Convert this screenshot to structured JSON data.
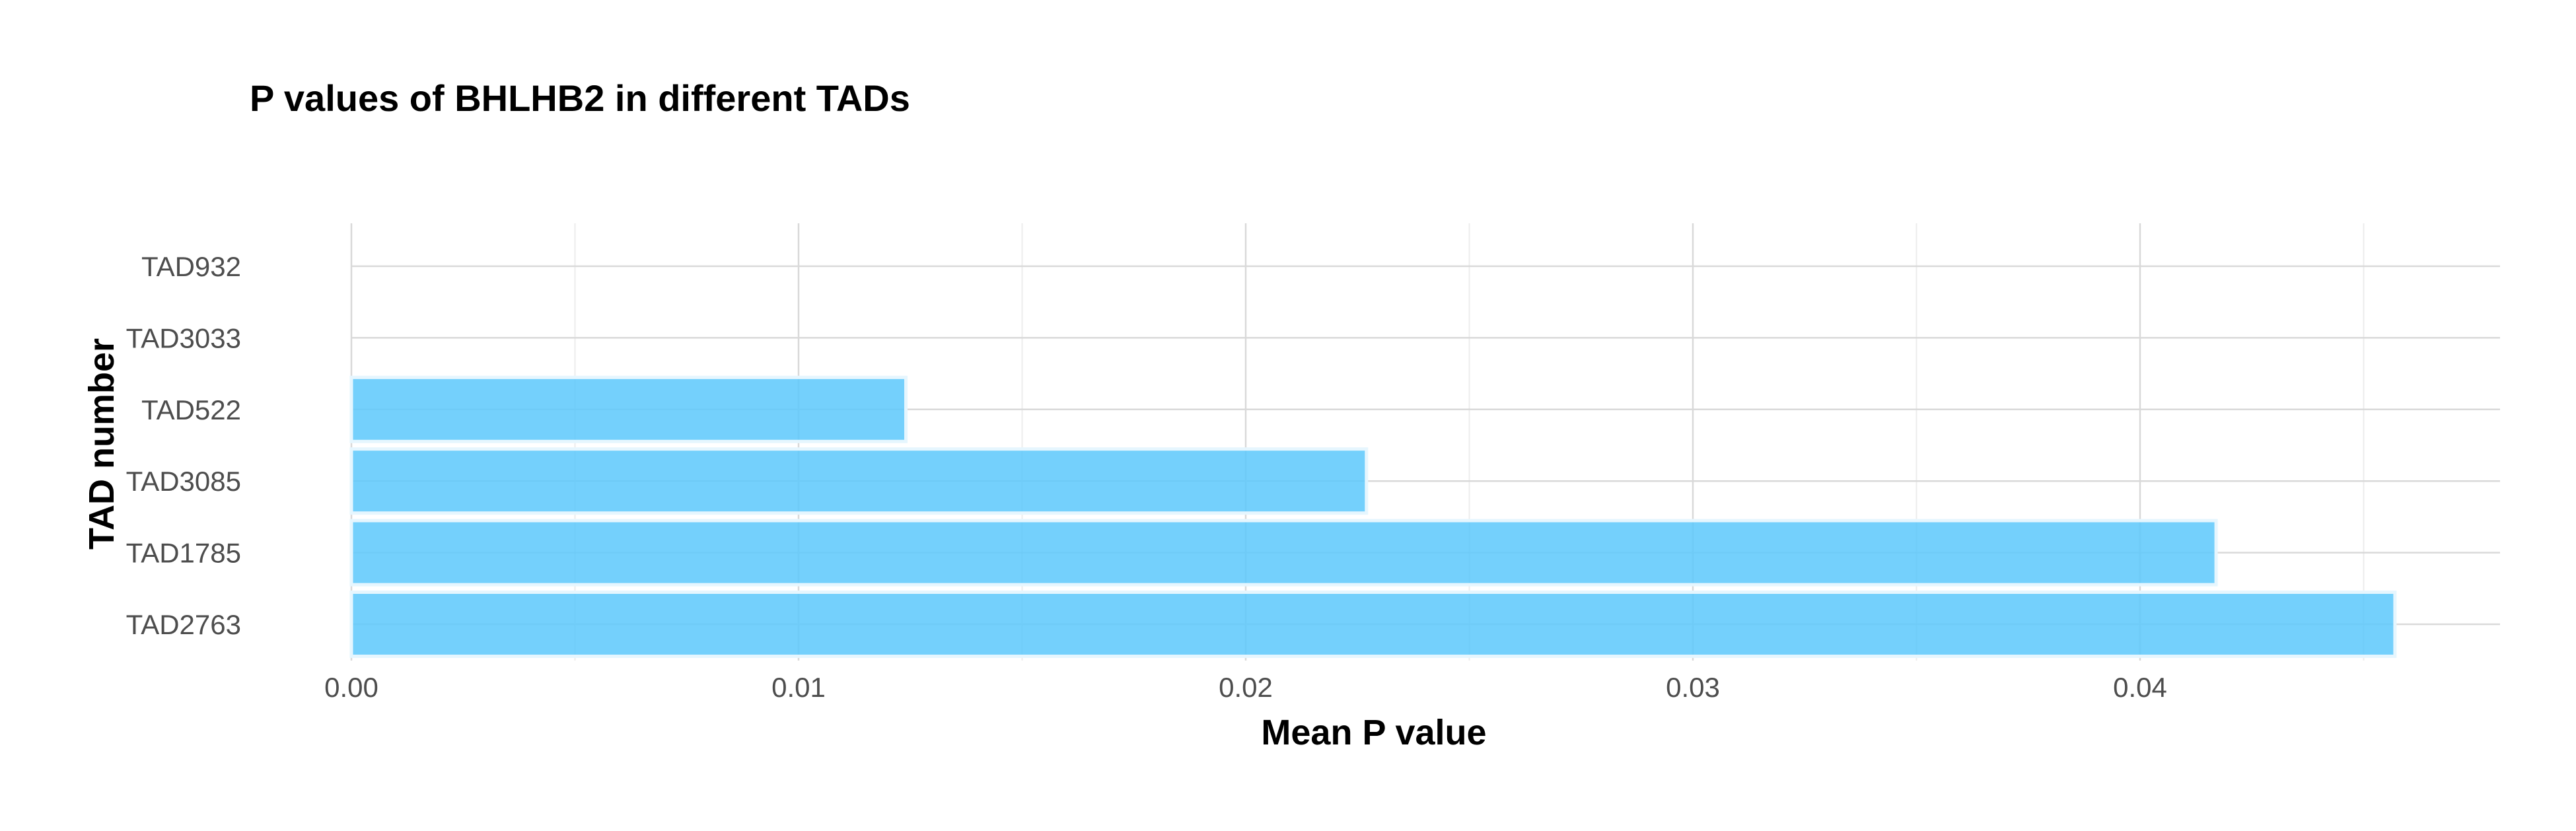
{
  "chart_data": {
    "type": "bar",
    "orientation": "horizontal",
    "title": "P values of BHLHB2 in different TADs",
    "xlabel": "Mean P value",
    "ylabel": "TAD number",
    "categories": [
      "TAD932",
      "TAD3033",
      "TAD522",
      "TAD3085",
      "TAD1785",
      "TAD2763"
    ],
    "values": [
      0.0,
      0.0,
      0.0124,
      0.0227,
      0.0417,
      0.0457
    ],
    "xlim": [
      0.0,
      0.048
    ],
    "xticks": [
      0.0,
      0.01,
      0.02,
      0.03,
      0.04
    ],
    "xtick_labels": [
      "0.00",
      "0.01",
      "0.02",
      "0.03",
      "0.04"
    ],
    "grid": true,
    "legend": "none",
    "bar_color": "#5cc8fb"
  }
}
